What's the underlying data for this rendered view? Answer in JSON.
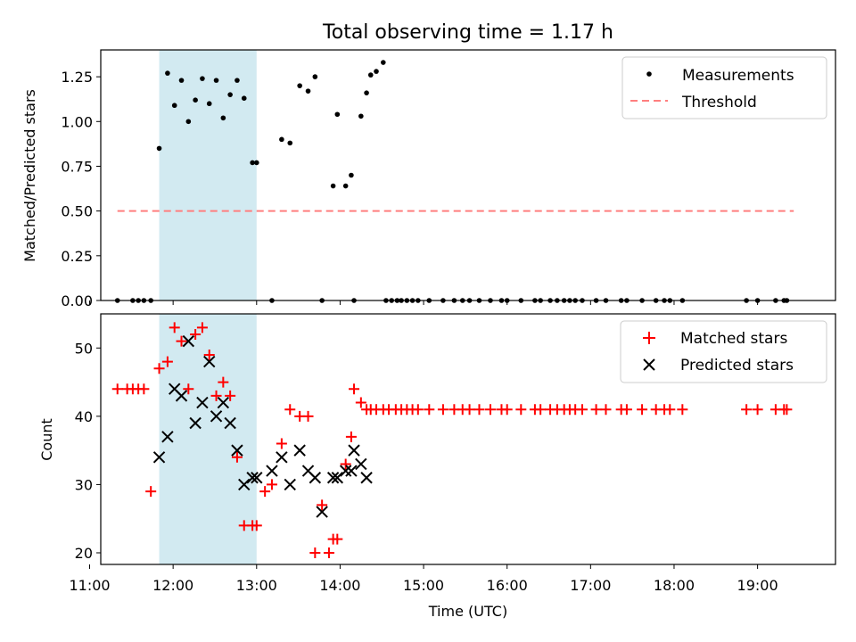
{
  "chart_data": [
    {
      "type": "scatter",
      "title": "Total observing time = 1.17 h",
      "ylabel": "Matched/Predicted stars",
      "ylim": [
        0,
        1.4
      ],
      "yticks": [
        "0.00",
        "0.25",
        "0.50",
        "0.75",
        "1.00",
        "1.25"
      ],
      "xlim": [
        "11:08",
        "19:56"
      ],
      "shaded_interval": [
        "11:50",
        "13:00"
      ],
      "shaded_color": "#add8e6",
      "legend": {
        "placement": "top-right",
        "entries": [
          "Measurements",
          "Threshold"
        ]
      },
      "series": [
        {
          "name": "Measurements",
          "style": "dot",
          "color": "#000000",
          "x": [
            "11:20",
            "11:31",
            "11:35",
            "11:39",
            "11:44",
            "11:50",
            "11:56",
            "12:01",
            "12:06",
            "12:11",
            "12:16",
            "12:21",
            "12:26",
            "12:31",
            "12:36",
            "12:41",
            "12:46",
            "12:51",
            "12:57",
            "13:00",
            "13:11",
            "13:18",
            "13:24",
            "13:31",
            "13:37",
            "13:42",
            "13:47",
            "13:55",
            "13:58",
            "14:04",
            "14:08",
            "14:10",
            "14:15",
            "14:19",
            "14:22",
            "14:26",
            "14:31",
            "14:33",
            "14:37",
            "14:41",
            "14:44",
            "14:48",
            "14:52",
            "14:56",
            "15:04",
            "15:14",
            "15:22",
            "15:28",
            "15:33",
            "15:40",
            "15:48",
            "15:56",
            "16:00",
            "16:10",
            "16:20",
            "16:24",
            "16:31",
            "16:36",
            "16:41",
            "16:45",
            "16:49",
            "16:54",
            "17:04",
            "17:11",
            "17:22",
            "17:26",
            "17:37",
            "17:47",
            "17:53",
            "17:57",
            "18:06",
            "18:52",
            "19:00",
            "19:13",
            "19:19",
            "19:21"
          ],
          "y": [
            0,
            0,
            0,
            0,
            0,
            0.85,
            1.27,
            1.09,
            1.23,
            1.0,
            1.12,
            1.24,
            1.1,
            1.23,
            1.02,
            1.15,
            1.23,
            1.13,
            0.77,
            0.77,
            0,
            0.9,
            0.88,
            1.2,
            1.17,
            1.25,
            0,
            0.64,
            1.04,
            0.64,
            0.7,
            0,
            1.03,
            1.16,
            1.26,
            1.28,
            1.33,
            0,
            0,
            0,
            0,
            0,
            0,
            0,
            0,
            0,
            0,
            0,
            0,
            0,
            0,
            0,
            0,
            0,
            0,
            0,
            0,
            0,
            0,
            0,
            0,
            0,
            0,
            0,
            0,
            0,
            0,
            0,
            0,
            0,
            0,
            0,
            0,
            0,
            0,
            0
          ]
        },
        {
          "name": "Threshold",
          "style": "dashed",
          "color": "#ff7f7f",
          "x": [
            "11:20",
            "19:26"
          ],
          "y": [
            0.5,
            0.5
          ]
        }
      ]
    },
    {
      "type": "scatter",
      "xlabel": "Time (UTC)",
      "ylabel": "Count",
      "ylim": [
        18.3,
        55
      ],
      "yticks": [
        "20",
        "30",
        "40",
        "50"
      ],
      "xlim": [
        "11:08",
        "19:56"
      ],
      "xticks": [
        "11:00",
        "12:00",
        "13:00",
        "14:00",
        "15:00",
        "16:00",
        "17:00",
        "18:00",
        "19:00"
      ],
      "shaded_interval": [
        "11:50",
        "13:00"
      ],
      "shaded_color": "#add8e6",
      "legend": {
        "placement": "top-right",
        "entries": [
          "Matched stars",
          "Predicted stars"
        ]
      },
      "series": [
        {
          "name": "Matched stars",
          "marker": "plus",
          "color": "#ff0000",
          "x": [
            "11:20",
            "11:27",
            "11:31",
            "11:35",
            "11:39",
            "11:44",
            "11:50",
            "11:56",
            "12:01",
            "12:06",
            "12:11",
            "12:16",
            "12:21",
            "12:26",
            "12:31",
            "12:36",
            "12:41",
            "12:46",
            "12:51",
            "12:57",
            "13:00",
            "13:06",
            "13:11",
            "13:18",
            "13:24",
            "13:31",
            "13:37",
            "13:42",
            "13:47",
            "13:52",
            "13:55",
            "13:58",
            "14:04",
            "14:08",
            "14:10",
            "14:15",
            "14:19",
            "14:22",
            "14:26",
            "14:31",
            "14:35",
            "14:40",
            "14:44",
            "14:48",
            "14:52",
            "14:56",
            "15:04",
            "15:14",
            "15:22",
            "15:28",
            "15:33",
            "15:40",
            "15:48",
            "15:56",
            "16:00",
            "16:10",
            "16:20",
            "16:24",
            "16:31",
            "16:36",
            "16:41",
            "16:45",
            "16:49",
            "16:54",
            "17:04",
            "17:11",
            "17:22",
            "17:26",
            "17:37",
            "17:47",
            "17:53",
            "17:57",
            "18:06",
            "18:52",
            "19:00",
            "19:13",
            "19:19",
            "19:21"
          ],
          "y": [
            44,
            44,
            44,
            44,
            44,
            29,
            47,
            48,
            53,
            51,
            44,
            52,
            53,
            49,
            43,
            45,
            43,
            34,
            24,
            24,
            24,
            29,
            30,
            36,
            41,
            40,
            40,
            20,
            27,
            20,
            22,
            22,
            33,
            37,
            44,
            42,
            41,
            41,
            41,
            41,
            41,
            41,
            41,
            41,
            41,
            41,
            41,
            41,
            41,
            41,
            41,
            41,
            41,
            41,
            41,
            41,
            41,
            41,
            41,
            41,
            41,
            41,
            41,
            41,
            41,
            41,
            41,
            41,
            41,
            41,
            41,
            41,
            41,
            41,
            41,
            41,
            41,
            41
          ]
        },
        {
          "name": "Predicted stars",
          "marker": "x",
          "color": "#000000",
          "x": [
            "11:50",
            "11:56",
            "12:01",
            "12:06",
            "12:11",
            "12:16",
            "12:21",
            "12:26",
            "12:31",
            "12:36",
            "12:41",
            "12:46",
            "12:51",
            "12:57",
            "13:00",
            "13:11",
            "13:18",
            "13:24",
            "13:31",
            "13:37",
            "13:42",
            "13:47",
            "13:55",
            "13:58",
            "14:04",
            "14:08",
            "14:10",
            "14:15",
            "14:19"
          ],
          "y": [
            34,
            37,
            44,
            43,
            51,
            39,
            42,
            48,
            40,
            42,
            39,
            35,
            30,
            31,
            31,
            32,
            34,
            30,
            35,
            32,
            31,
            26,
            31,
            31,
            32,
            32,
            35,
            33,
            31
          ]
        }
      ]
    }
  ]
}
